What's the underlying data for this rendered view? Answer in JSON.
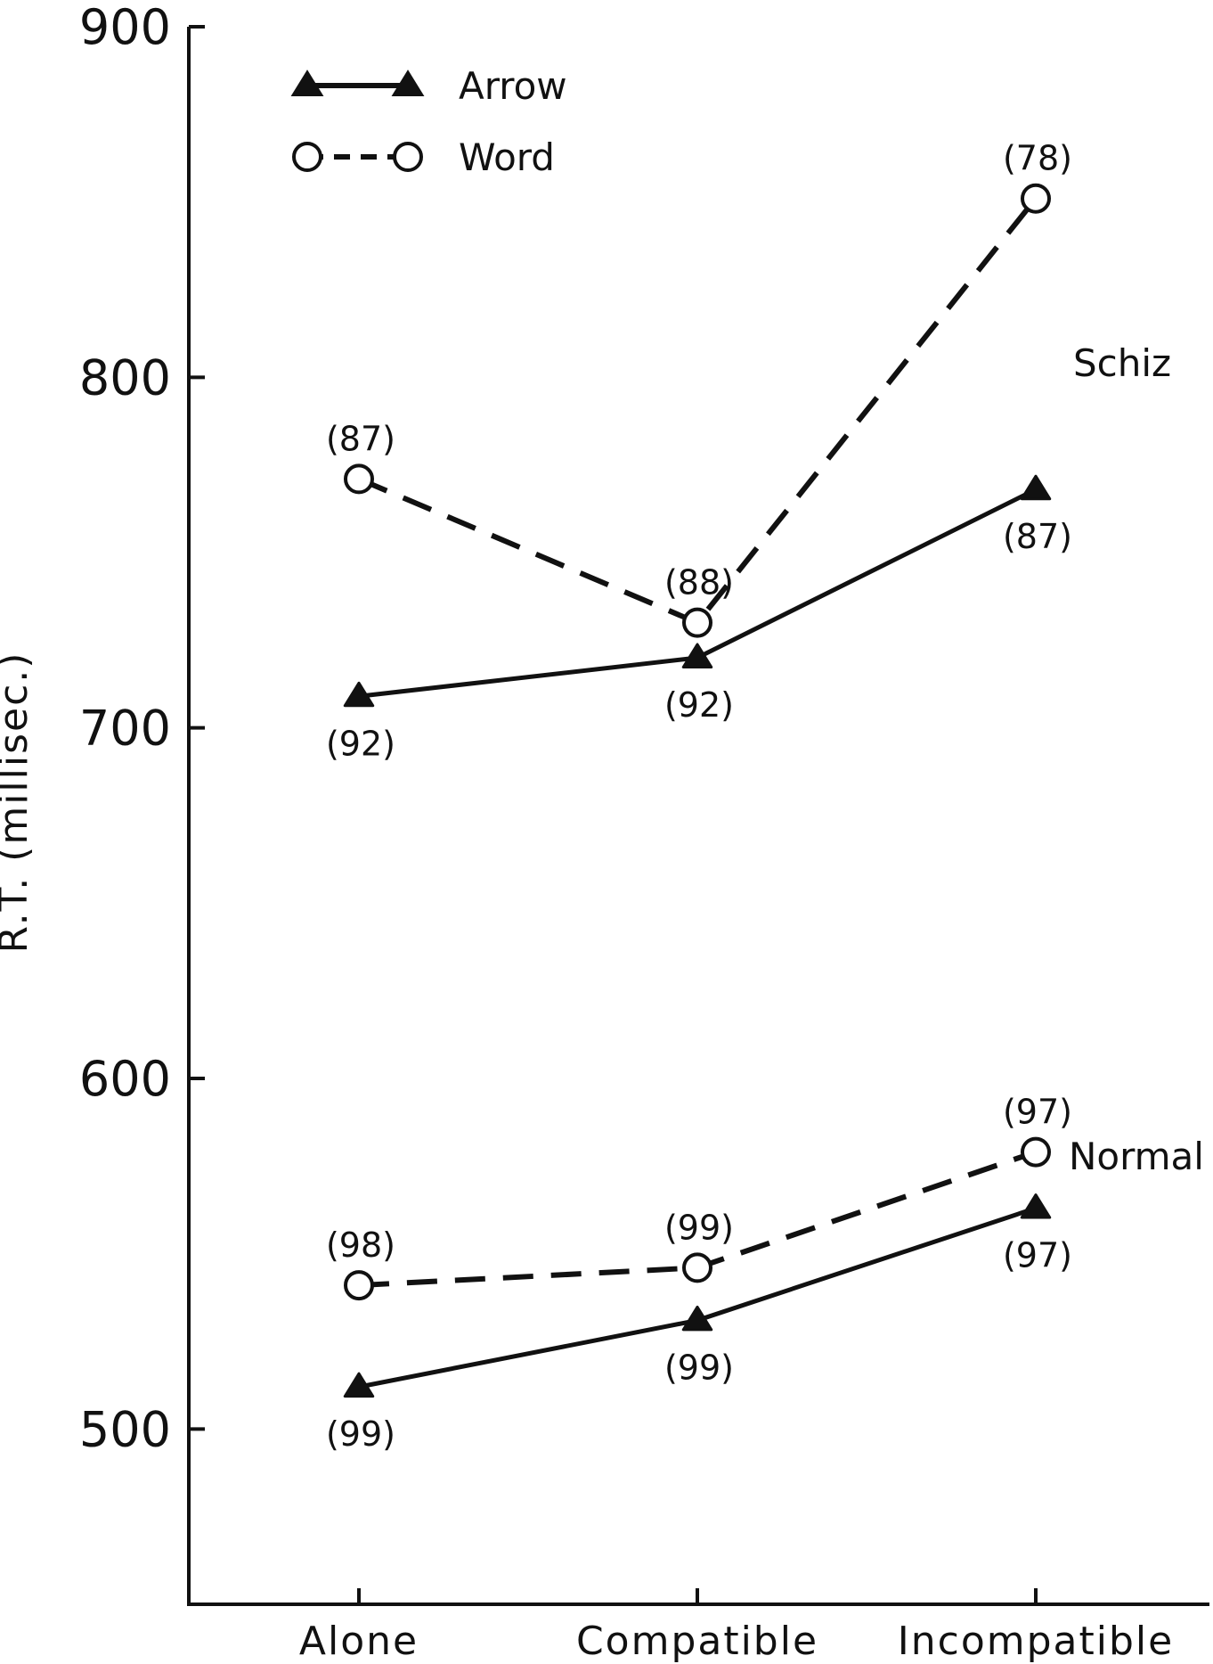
{
  "chart_data": {
    "type": "line",
    "ylabel": "R.T. (millisec.)",
    "ylim": [
      450,
      900
    ],
    "yticks": [
      500,
      600,
      700,
      800,
      900
    ],
    "categories": [
      "Alone",
      "Compatible",
      "Incompatible"
    ],
    "legend": [
      {
        "name": "Arrow",
        "marker": "filled-triangle",
        "line": "solid"
      },
      {
        "name": "Word",
        "marker": "open-circle",
        "line": "dashed"
      }
    ],
    "groups": [
      {
        "label": "Schiz",
        "series": [
          {
            "name": "Word",
            "values": [
              771,
              730,
              851
            ],
            "n_labels": [
              "(87)",
              "(88)",
              "(78)"
            ]
          },
          {
            "name": "Arrow",
            "values": [
              709,
              720,
              768
            ],
            "n_labels": [
              "(92)",
              "(92)",
              "(87)"
            ]
          }
        ]
      },
      {
        "label": "Normal",
        "series": [
          {
            "name": "Word",
            "values": [
              541,
              546,
              579
            ],
            "n_labels": [
              "(98)",
              "(99)",
              "(97)"
            ]
          },
          {
            "name": "Arrow",
            "values": [
              512,
              531,
              563
            ],
            "n_labels": [
              "(99)",
              "(99)",
              "(97)"
            ]
          }
        ]
      }
    ],
    "grid": false,
    "legend_position": "top-left",
    "colors": {
      "ink": "#111111",
      "background": "#ffffff"
    }
  }
}
